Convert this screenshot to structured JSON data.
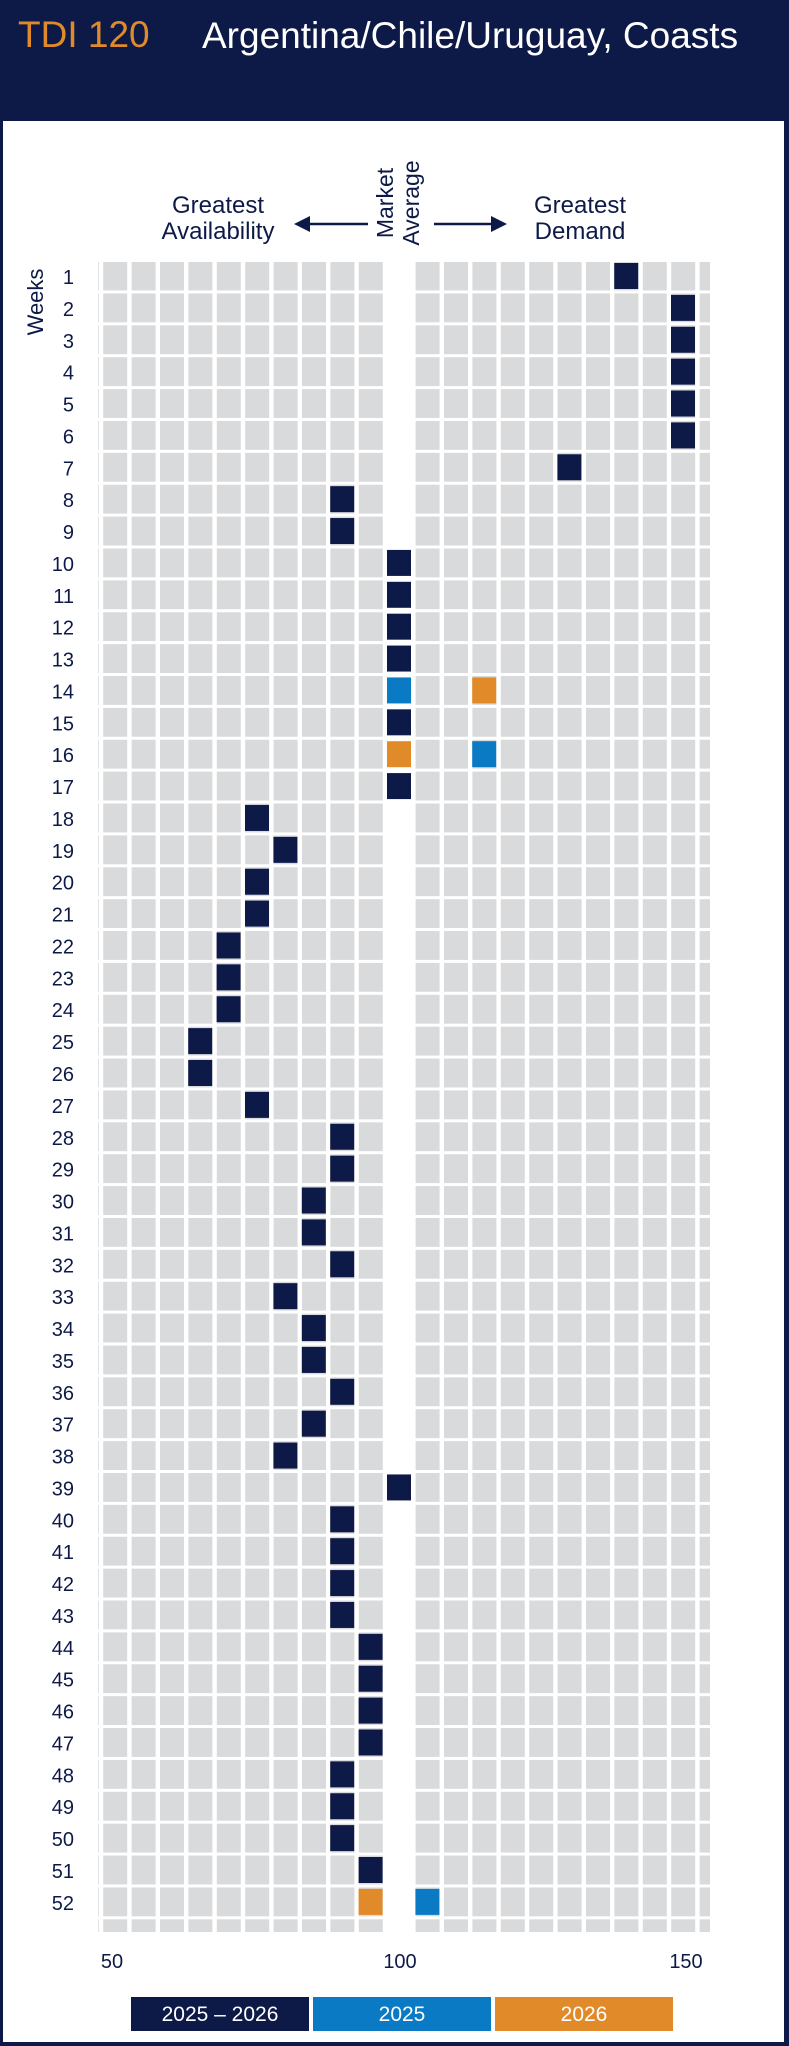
{
  "header": {
    "brand": "TDI 120",
    "title": "Argentina/Chile/Uruguay, Coasts"
  },
  "labels": {
    "left_l1": "Greatest",
    "left_l2": "Availability",
    "mid_l1": "Market",
    "mid_l2": "Average",
    "right_l1": "Greatest",
    "right_l2": "Demand",
    "axis": "Weeks"
  },
  "colors": {
    "navy": "#0d1a48",
    "blue": "#0a7ac4",
    "orange": "#e08a2a",
    "cell": "#d9dadc",
    "grid_bg": "#ffffff"
  },
  "chart_data": {
    "type": "heatmap",
    "title": "TDI 120 Argentina/Chile/Uruguay, Coasts",
    "xlabel": "",
    "ylabel": "Weeks",
    "x_ticks": [
      50,
      100,
      150
    ],
    "xlim": [
      50,
      150
    ],
    "market_average": 100,
    "weeks": [
      1,
      2,
      3,
      4,
      5,
      6,
      7,
      8,
      9,
      10,
      11,
      12,
      13,
      14,
      15,
      16,
      17,
      18,
      19,
      20,
      21,
      22,
      23,
      24,
      25,
      26,
      27,
      28,
      29,
      30,
      31,
      32,
      33,
      34,
      35,
      36,
      37,
      38,
      39,
      40,
      41,
      42,
      43,
      44,
      45,
      46,
      47,
      48,
      49,
      50,
      51,
      52
    ],
    "legend": [
      {
        "name": "2025 – 2026",
        "color": "#0d1a48"
      },
      {
        "name": "2025",
        "color": "#0a7ac4"
      },
      {
        "name": "2026",
        "color": "#e08a2a"
      }
    ],
    "series": [
      {
        "name": "2025 – 2026",
        "values": [
          140,
          150,
          150,
          150,
          150,
          150,
          130,
          90,
          90,
          100,
          100,
          100,
          100,
          null,
          100,
          null,
          100,
          75,
          80,
          75,
          75,
          70,
          70,
          70,
          65,
          65,
          75,
          90,
          90,
          85,
          85,
          90,
          80,
          85,
          85,
          90,
          85,
          80,
          100,
          90,
          90,
          90,
          90,
          95,
          95,
          95,
          95,
          90,
          90,
          90,
          95,
          null
        ]
      },
      {
        "name": "2025",
        "values": [
          null,
          null,
          null,
          null,
          null,
          null,
          null,
          null,
          null,
          null,
          null,
          null,
          null,
          100,
          null,
          115,
          null,
          null,
          null,
          null,
          null,
          null,
          null,
          null,
          null,
          null,
          null,
          null,
          null,
          null,
          null,
          null,
          null,
          null,
          null,
          null,
          null,
          null,
          null,
          null,
          null,
          null,
          null,
          null,
          null,
          null,
          null,
          null,
          null,
          null,
          null,
          105
        ]
      },
      {
        "name": "2026",
        "values": [
          null,
          null,
          null,
          null,
          null,
          null,
          null,
          null,
          null,
          null,
          null,
          null,
          null,
          115,
          null,
          100,
          null,
          null,
          null,
          null,
          null,
          null,
          null,
          null,
          null,
          null,
          null,
          null,
          null,
          null,
          null,
          null,
          null,
          null,
          null,
          null,
          null,
          null,
          null,
          null,
          null,
          null,
          null,
          null,
          null,
          null,
          null,
          null,
          null,
          null,
          null,
          95
        ]
      }
    ]
  }
}
